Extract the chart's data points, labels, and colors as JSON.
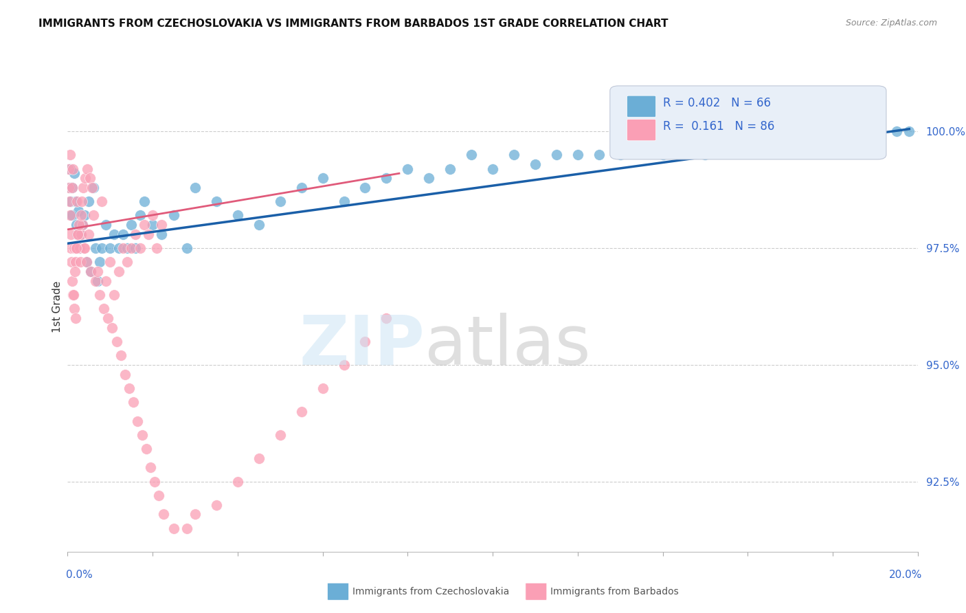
{
  "title": "IMMIGRANTS FROM CZECHOSLOVAKIA VS IMMIGRANTS FROM BARBADOS 1ST GRADE CORRELATION CHART",
  "source": "Source: ZipAtlas.com",
  "ylabel": "1st Grade",
  "xlim": [
    0.0,
    20.0
  ],
  "ylim": [
    91.0,
    101.5
  ],
  "yticks": [
    92.5,
    95.0,
    97.5,
    100.0
  ],
  "r_czech": 0.402,
  "n_czech": 66,
  "r_barbados": 0.161,
  "n_barbados": 86,
  "color_czech": "#6baed6",
  "color_barbados": "#fa9fb5",
  "line_color_czech": "#1a5fa8",
  "line_color_barbados": "#e05a7a",
  "legend_text_color": "#3366cc",
  "axis_label_color": "#3366cc",
  "czech_x": [
    0.05,
    0.08,
    0.1,
    0.12,
    0.15,
    0.18,
    0.2,
    0.22,
    0.25,
    0.28,
    0.3,
    0.35,
    0.4,
    0.45,
    0.5,
    0.55,
    0.6,
    0.65,
    0.7,
    0.75,
    0.8,
    0.9,
    1.0,
    1.1,
    1.2,
    1.3,
    1.4,
    1.5,
    1.6,
    1.7,
    1.8,
    2.0,
    2.2,
    2.5,
    2.8,
    3.0,
    3.5,
    4.0,
    4.5,
    5.0,
    5.5,
    6.0,
    6.5,
    7.0,
    7.5,
    8.0,
    8.5,
    9.0,
    9.5,
    10.0,
    10.5,
    11.0,
    11.5,
    12.0,
    12.5,
    13.0,
    14.0,
    15.0,
    16.0,
    17.0,
    18.0,
    19.0,
    19.5,
    19.8,
    0.06,
    0.09
  ],
  "czech_y": [
    99.2,
    98.5,
    98.8,
    98.2,
    99.1,
    98.5,
    98.0,
    97.8,
    98.3,
    97.5,
    97.8,
    98.0,
    98.2,
    97.2,
    98.5,
    97.0,
    98.8,
    97.5,
    96.8,
    97.2,
    97.5,
    98.0,
    97.5,
    97.8,
    97.5,
    97.8,
    97.5,
    98.0,
    97.5,
    98.2,
    98.5,
    98.0,
    97.8,
    98.2,
    97.5,
    98.8,
    98.5,
    98.2,
    98.0,
    98.5,
    98.8,
    99.0,
    98.5,
    98.8,
    99.0,
    99.2,
    99.0,
    99.2,
    99.5,
    99.2,
    99.5,
    99.3,
    99.5,
    99.5,
    99.5,
    99.5,
    99.5,
    99.5,
    99.8,
    99.8,
    100.0,
    100.0,
    100.0,
    100.0,
    98.8,
    98.2
  ],
  "barbados_x": [
    0.02,
    0.03,
    0.04,
    0.05,
    0.06,
    0.07,
    0.08,
    0.09,
    0.1,
    0.11,
    0.12,
    0.13,
    0.15,
    0.16,
    0.18,
    0.19,
    0.2,
    0.22,
    0.25,
    0.28,
    0.3,
    0.32,
    0.35,
    0.38,
    0.4,
    0.45,
    0.5,
    0.55,
    0.6,
    0.65,
    0.7,
    0.75,
    0.8,
    0.85,
    0.9,
    0.95,
    1.0,
    1.05,
    1.1,
    1.15,
    1.2,
    1.25,
    1.3,
    1.35,
    1.4,
    1.45,
    1.5,
    1.55,
    1.6,
    1.65,
    1.7,
    1.75,
    1.8,
    1.85,
    1.9,
    1.95,
    2.0,
    2.05,
    2.1,
    2.15,
    2.2,
    2.25,
    2.5,
    2.8,
    3.0,
    3.5,
    4.0,
    4.5,
    5.0,
    5.5,
    6.0,
    6.5,
    7.0,
    7.5,
    0.14,
    0.17,
    0.21,
    0.24,
    0.27,
    0.31,
    0.34,
    0.37,
    0.42,
    0.47,
    0.52,
    0.57
  ],
  "barbados_y": [
    99.2,
    98.8,
    98.5,
    99.5,
    98.2,
    97.8,
    97.5,
    97.2,
    98.8,
    96.8,
    99.2,
    96.5,
    97.5,
    96.2,
    97.2,
    96.0,
    97.5,
    98.5,
    97.8,
    97.5,
    97.2,
    97.8,
    98.0,
    97.5,
    97.5,
    97.2,
    97.8,
    97.0,
    98.2,
    96.8,
    97.0,
    96.5,
    98.5,
    96.2,
    96.8,
    96.0,
    97.2,
    95.8,
    96.5,
    95.5,
    97.0,
    95.2,
    97.5,
    94.8,
    97.2,
    94.5,
    97.5,
    94.2,
    97.8,
    93.8,
    97.5,
    93.5,
    98.0,
    93.2,
    97.8,
    92.8,
    98.2,
    92.5,
    97.5,
    92.2,
    98.0,
    91.8,
    91.5,
    91.5,
    91.8,
    92.0,
    92.5,
    93.0,
    93.5,
    94.0,
    94.5,
    95.0,
    95.5,
    96.0,
    96.5,
    97.0,
    97.5,
    97.8,
    98.0,
    98.2,
    98.5,
    98.8,
    99.0,
    99.2,
    99.0,
    98.8
  ]
}
